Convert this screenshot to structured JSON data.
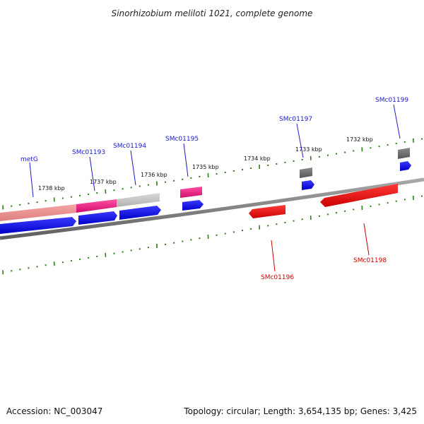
{
  "title": "Sinorhizobium meliloti 1021, complete genome",
  "footer": {
    "accession": "Accession: NC_003047",
    "summary": "Topology: circular; Length: 3,654,135 bp; Genes: 3,425"
  },
  "scale": {
    "labels": [
      "1738 kbp",
      "1737 kbp",
      "1736 kbp",
      "1735 kbp",
      "1734 kbp",
      "1733 kbp",
      "1732 kbp"
    ]
  },
  "colors": {
    "backbone": "#808080",
    "tick": "#2e7d1a",
    "forward_label": "#1a1acc",
    "reverse_label": "#cc0000",
    "cds_forward": "#0000ee",
    "cds_reverse": "#ee0000",
    "gene_pink": "#e8157f",
    "gene_lightpink": "#e88a8a",
    "gene_lightgray": "#c0c0c0",
    "gene_gray": "#6e6e6e"
  },
  "genes": {
    "forward": [
      "metG",
      "SMc01193",
      "SMc01194",
      "SMc01195",
      "SMc01197",
      "SMc01199"
    ],
    "reverse": [
      "SMc01196",
      "SMc01198"
    ]
  }
}
